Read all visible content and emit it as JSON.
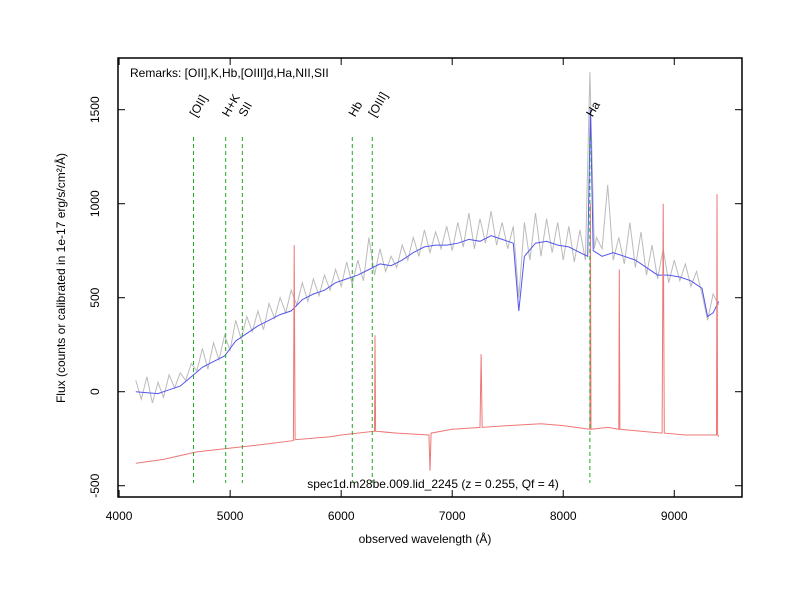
{
  "chart_data": {
    "type": "line",
    "xlabel": "observed wavelength (Å)",
    "ylabel": "Flux (counts or calibrated in 1e-17 erg/s/cm²/Å)",
    "remarks": "Remarks: [OII],K,Hb,[OIII]d,Ha,NII,SII",
    "caption": "spec1d.m28be.009.lid_2245 (z = 0.255, Qf = 4)",
    "xlim": [
      3990,
      9610
    ],
    "ylim": [
      -560,
      1775
    ],
    "xticks": [
      4000,
      5000,
      6000,
      7000,
      8000,
      9000
    ],
    "yticks": [
      -500,
      0,
      500,
      1000,
      1500
    ],
    "lines": [
      {
        "x": 4670,
        "label": "[OII]"
      },
      {
        "x": 4960,
        "label": "H+K"
      },
      {
        "x": 5110,
        "label": "SII"
      },
      {
        "x": 6100,
        "label": "Hb"
      },
      {
        "x": 6280,
        "label": "[OIII]"
      },
      {
        "x": 8240,
        "label": "Ha"
      }
    ],
    "line_color": "#22aa22",
    "series": [
      {
        "color": "#bbbbbb",
        "x": [
          4150,
          4200,
          4250,
          4300,
          4350,
          4400,
          4450,
          4500,
          4550,
          4600,
          4650,
          4700,
          4750,
          4800,
          4850,
          4900,
          4950,
          5000,
          5050,
          5100,
          5150,
          5200,
          5250,
          5300,
          5350,
          5400,
          5450,
          5500,
          5550,
          5600,
          5650,
          5700,
          5750,
          5800,
          5850,
          5900,
          5950,
          6000,
          6050,
          6100,
          6150,
          6200,
          6250,
          6300,
          6350,
          6400,
          6450,
          6500,
          6550,
          6600,
          6650,
          6700,
          6750,
          6800,
          6850,
          6900,
          6950,
          7000,
          7050,
          7100,
          7150,
          7200,
          7250,
          7300,
          7350,
          7400,
          7450,
          7500,
          7550,
          7600,
          7650,
          7700,
          7750,
          7800,
          7850,
          7900,
          7950,
          8000,
          8050,
          8100,
          8150,
          8200,
          8240,
          8280,
          8300,
          8350,
          8400,
          8450,
          8500,
          8550,
          8600,
          8650,
          8700,
          8750,
          8800,
          8850,
          8900,
          8950,
          9000,
          9050,
          9100,
          9150,
          9200,
          9250,
          9300,
          9350,
          9400
        ],
        "values": [
          60,
          -40,
          80,
          -60,
          50,
          -30,
          90,
          20,
          100,
          60,
          150,
          110,
          230,
          120,
          260,
          170,
          300,
          220,
          380,
          280,
          400,
          320,
          430,
          330,
          470,
          390,
          500,
          420,
          540,
          460,
          580,
          480,
          600,
          510,
          620,
          540,
          650,
          560,
          690,
          570,
          700,
          590,
          820,
          620,
          760,
          640,
          720,
          660,
          780,
          700,
          820,
          720,
          860,
          740,
          850,
          760,
          880,
          750,
          900,
          770,
          950,
          760,
          920,
          790,
          960,
          780,
          900,
          760,
          880,
          500,
          900,
          700,
          950,
          720,
          920,
          740,
          900,
          700,
          880,
          690,
          860,
          700,
          1700,
          760,
          820,
          760,
          1100,
          700,
          820,
          680,
          900,
          660,
          850,
          620,
          780,
          600,
          760,
          580,
          700,
          590,
          680,
          560,
          640,
          520,
          380,
          520,
          460
        ]
      },
      {
        "color": "#5555ee",
        "x": [
          4150,
          4250,
          4350,
          4450,
          4550,
          4650,
          4750,
          4850,
          4950,
          5050,
          5150,
          5250,
          5350,
          5450,
          5550,
          5650,
          5750,
          5850,
          5950,
          6050,
          6150,
          6250,
          6350,
          6450,
          6550,
          6650,
          6750,
          6850,
          6950,
          7050,
          7150,
          7250,
          7350,
          7450,
          7550,
          7600,
          7650,
          7750,
          7850,
          7950,
          8050,
          8150,
          8220,
          8245,
          8270,
          8350,
          8450,
          8550,
          8650,
          8750,
          8850,
          8950,
          9050,
          9150,
          9250,
          9300,
          9350,
          9400
        ],
        "values": [
          0,
          -5,
          -10,
          10,
          30,
          80,
          130,
          160,
          190,
          270,
          310,
          350,
          380,
          410,
          430,
          490,
          520,
          540,
          580,
          600,
          620,
          650,
          680,
          670,
          700,
          740,
          770,
          780,
          780,
          790,
          810,
          800,
          830,
          810,
          790,
          430,
          720,
          790,
          800,
          780,
          770,
          740,
          720,
          1500,
          750,
          720,
          740,
          720,
          700,
          660,
          620,
          620,
          610,
          590,
          550,
          400,
          420,
          480
        ]
      },
      {
        "color": "#ee7777",
        "x": [
          4150,
          4400,
          4700,
          5000,
          5300,
          5570,
          5577,
          5585,
          5900,
          6000,
          6300,
          6305,
          6310,
          6500,
          6790,
          6800,
          6810,
          7000,
          7250,
          7260,
          7270,
          7500,
          7800,
          8000,
          8240,
          8245,
          8250,
          8400,
          8500,
          8505,
          8510,
          8700,
          8890,
          8900,
          8910,
          9100,
          9300,
          9380,
          9385,
          9390,
          9400
        ],
        "values": [
          -380,
          -360,
          -320,
          -300,
          -280,
          -260,
          780,
          -255,
          -240,
          -230,
          -210,
          300,
          -210,
          -220,
          -230,
          -420,
          -220,
          -200,
          -190,
          200,
          -190,
          -180,
          -170,
          -180,
          -200,
          1000,
          -200,
          -190,
          -200,
          650,
          -200,
          -210,
          -220,
          1000,
          -220,
          -230,
          -230,
          -230,
          1050,
          -230,
          -240
        ]
      }
    ]
  }
}
